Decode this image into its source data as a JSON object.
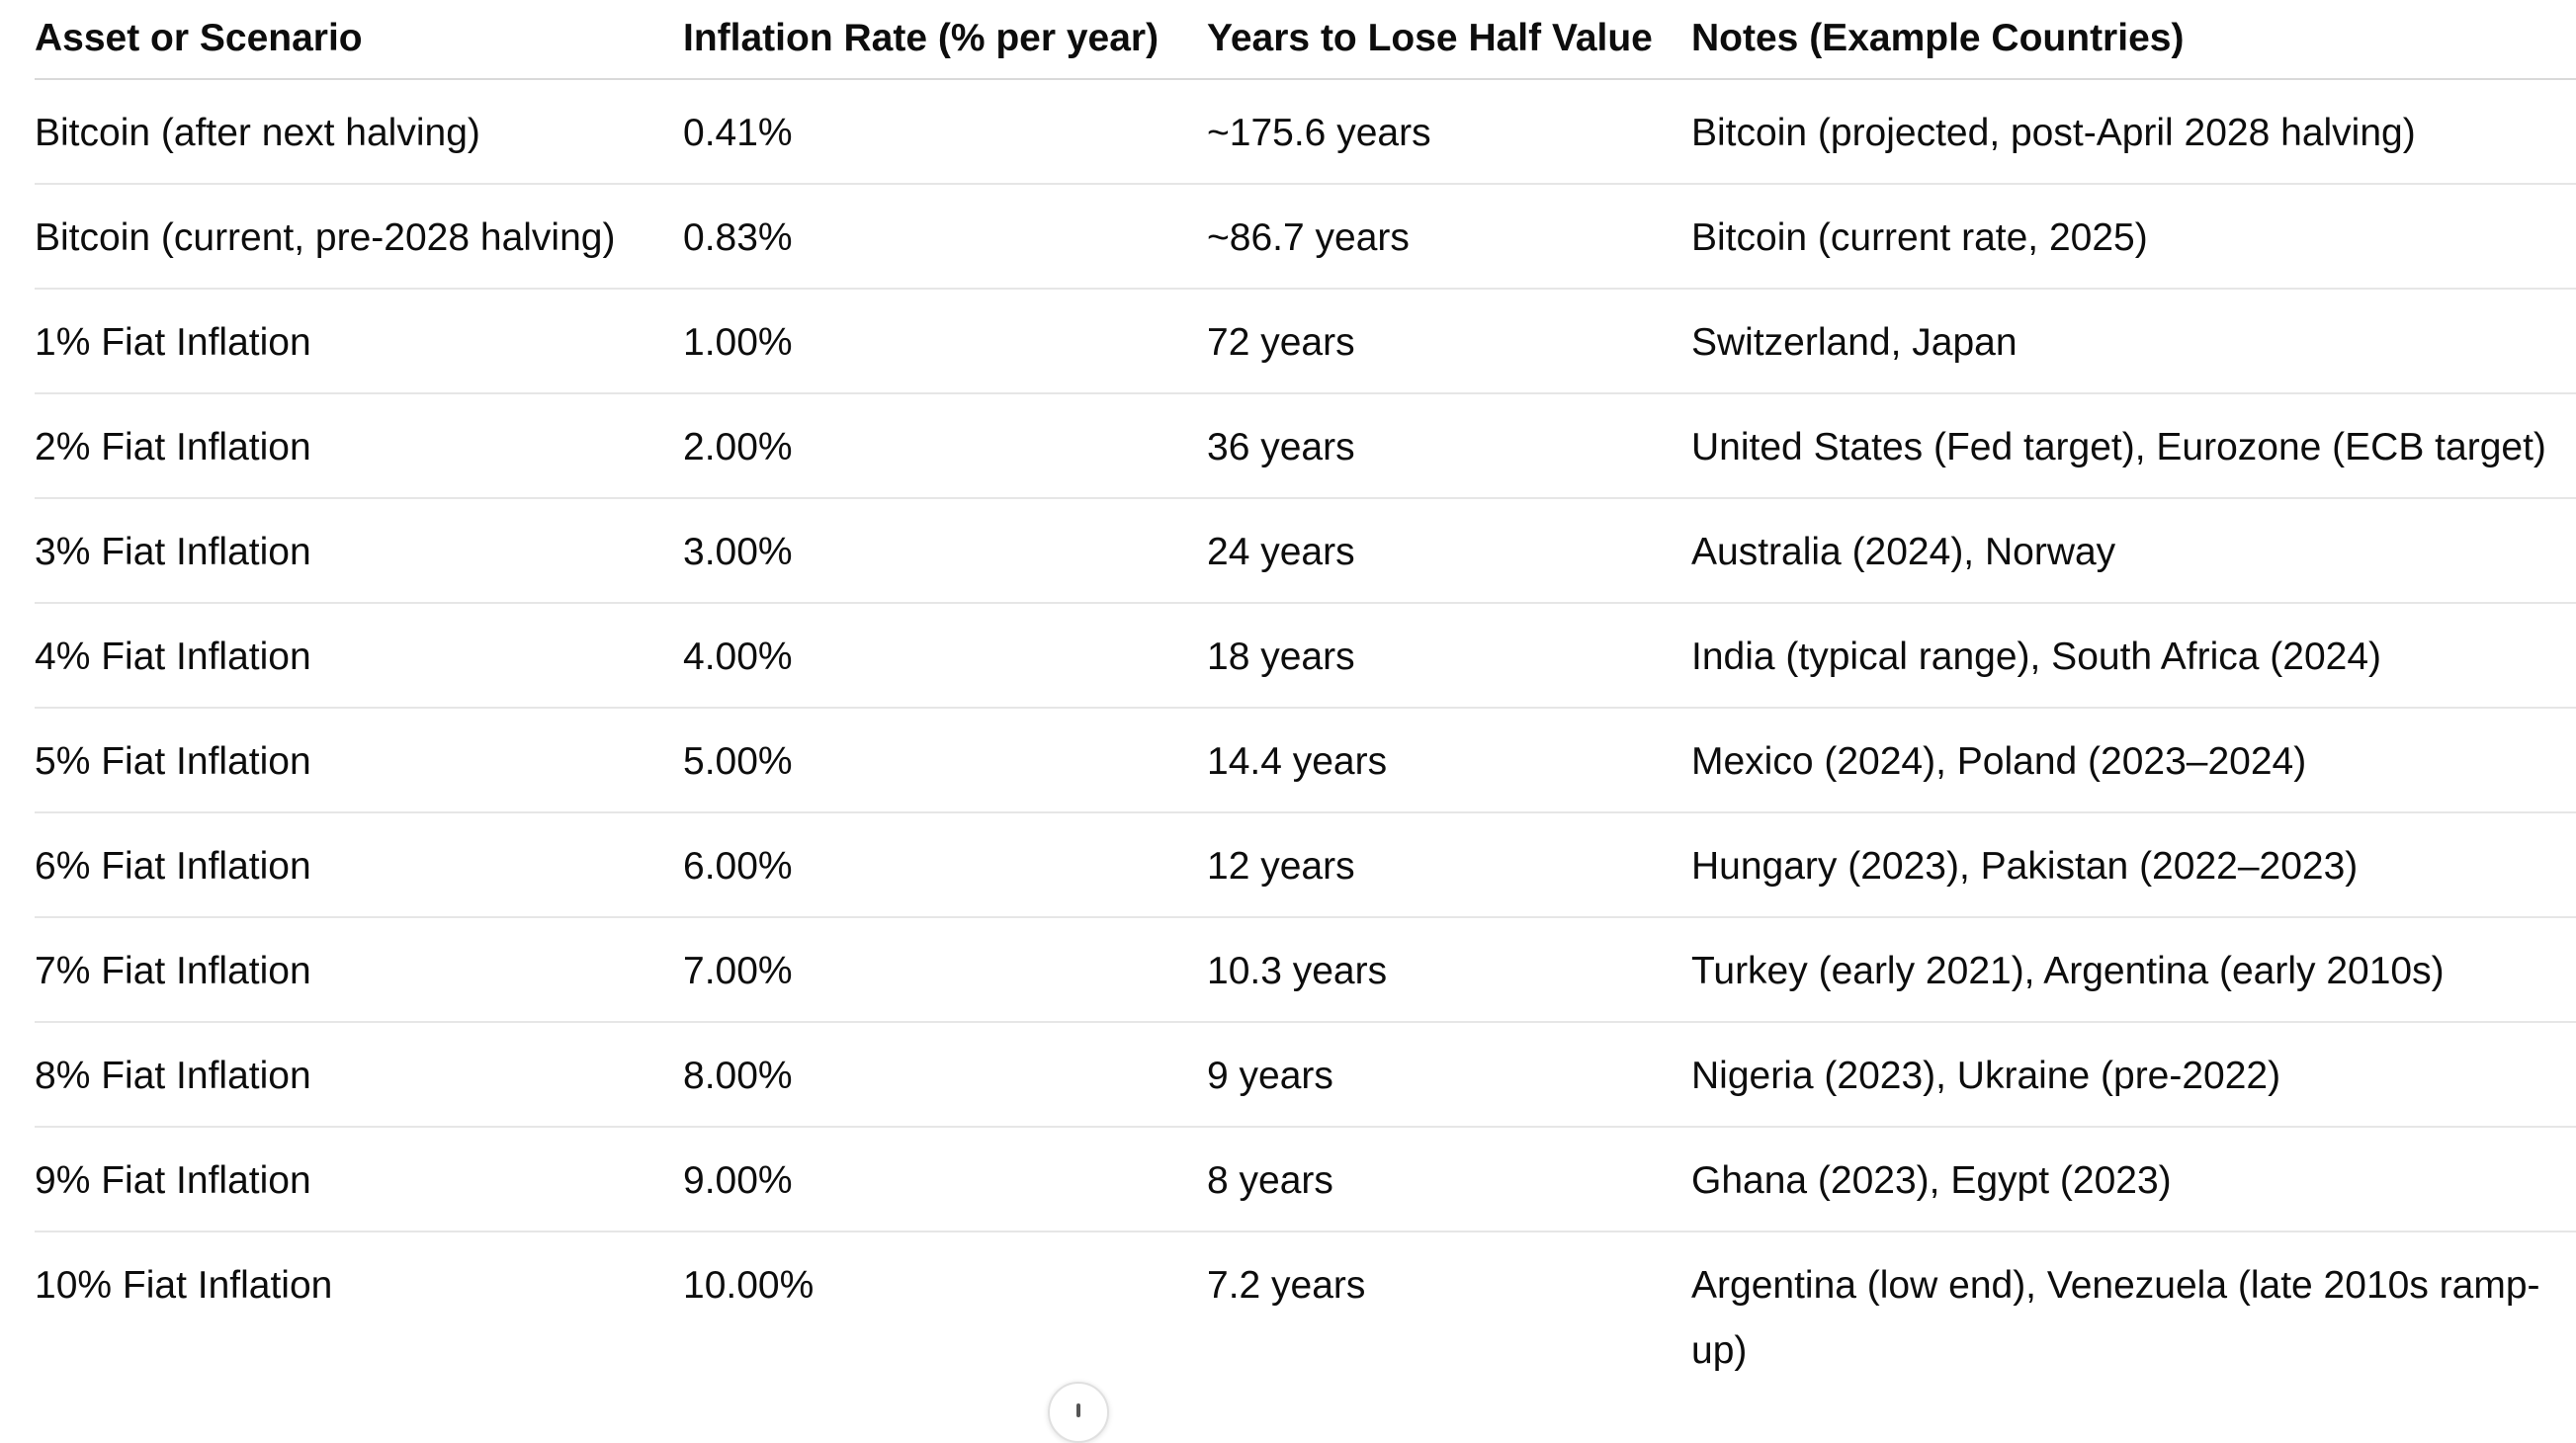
{
  "table": {
    "headers": [
      "Asset or Scenario",
      "Inflation Rate (% per year)",
      "Years to Lose Half Value",
      "Notes (Example Countries)"
    ],
    "rows": [
      [
        "Bitcoin (after next halving)",
        "0.41%",
        "~175.6 years",
        "Bitcoin (projected, post-April 2028 halving)"
      ],
      [
        "Bitcoin (current, pre-2028 halving)",
        "0.83%",
        "~86.7 years",
        "Bitcoin (current rate, 2025)"
      ],
      [
        "1% Fiat Inflation",
        "1.00%",
        "72 years",
        "Switzerland, Japan"
      ],
      [
        "2% Fiat Inflation",
        "2.00%",
        "36 years",
        "United States (Fed target), Eurozone (ECB target)"
      ],
      [
        "3% Fiat Inflation",
        "3.00%",
        "24 years",
        "Australia (2024), Norway"
      ],
      [
        "4% Fiat Inflation",
        "4.00%",
        "18 years",
        "India (typical range), South Africa (2024)"
      ],
      [
        "5% Fiat Inflation",
        "5.00%",
        "14.4 years",
        "Mexico (2024), Poland (2023–2024)"
      ],
      [
        "6% Fiat Inflation",
        "6.00%",
        "12 years",
        "Hungary (2023), Pakistan (2022–2023)"
      ],
      [
        "7% Fiat Inflation",
        "7.00%",
        "10.3 years",
        "Turkey (early 2021), Argentina (early 2010s)"
      ],
      [
        "8% Fiat Inflation",
        "8.00%",
        "9 years",
        "Nigeria (2023), Ukraine (pre-2022)"
      ],
      [
        "9% Fiat Inflation",
        "9.00%",
        "8 years",
        "Ghana (2023), Egypt (2023)"
      ],
      [
        "10% Fiat Inflation",
        "10.00%",
        "7.2 years",
        "Argentina (low end), Venezuela (late 2010s ramp-up)"
      ]
    ]
  },
  "scroll_button": {
    "icon": "arrow-down-icon"
  },
  "colors": {
    "text": "#0d0d0d",
    "divider": "#e6e6e6",
    "background": "#ffffff"
  }
}
